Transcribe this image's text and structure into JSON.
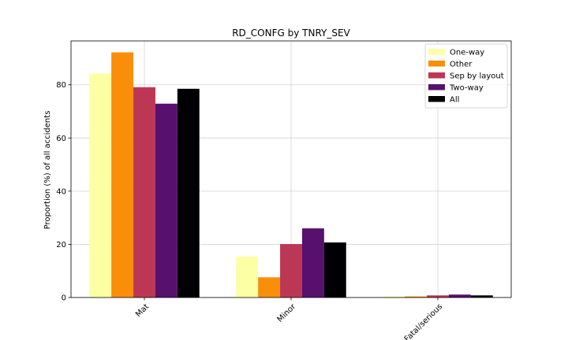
{
  "chart_data": {
    "type": "bar",
    "title": "RD_CONFG by TNRY_SEV",
    "xlabel": "",
    "ylabel": "Proportion (%) of all accidents",
    "categories": [
      "Mat",
      "Minor",
      "Fatal/serious"
    ],
    "ylim": [
      0,
      96.5
    ],
    "yticks": [
      0,
      20,
      40,
      60,
      80
    ],
    "grid": true,
    "legend_position": "top-right",
    "series": [
      {
        "name": "One-way",
        "color": "#fcffa4",
        "values": [
          84.2,
          15.4,
          0.4
        ]
      },
      {
        "name": "Other",
        "color": "#f98e09",
        "values": [
          92.2,
          7.6,
          0.4
        ]
      },
      {
        "name": "Sep by layout",
        "color": "#bc3754",
        "values": [
          79.1,
          20.1,
          0.8
        ]
      },
      {
        "name": "Two-way",
        "color": "#57106e",
        "values": [
          72.9,
          26.0,
          1.1
        ]
      },
      {
        "name": "All",
        "color": "#000004",
        "values": [
          78.5,
          20.7,
          0.8
        ]
      }
    ]
  }
}
